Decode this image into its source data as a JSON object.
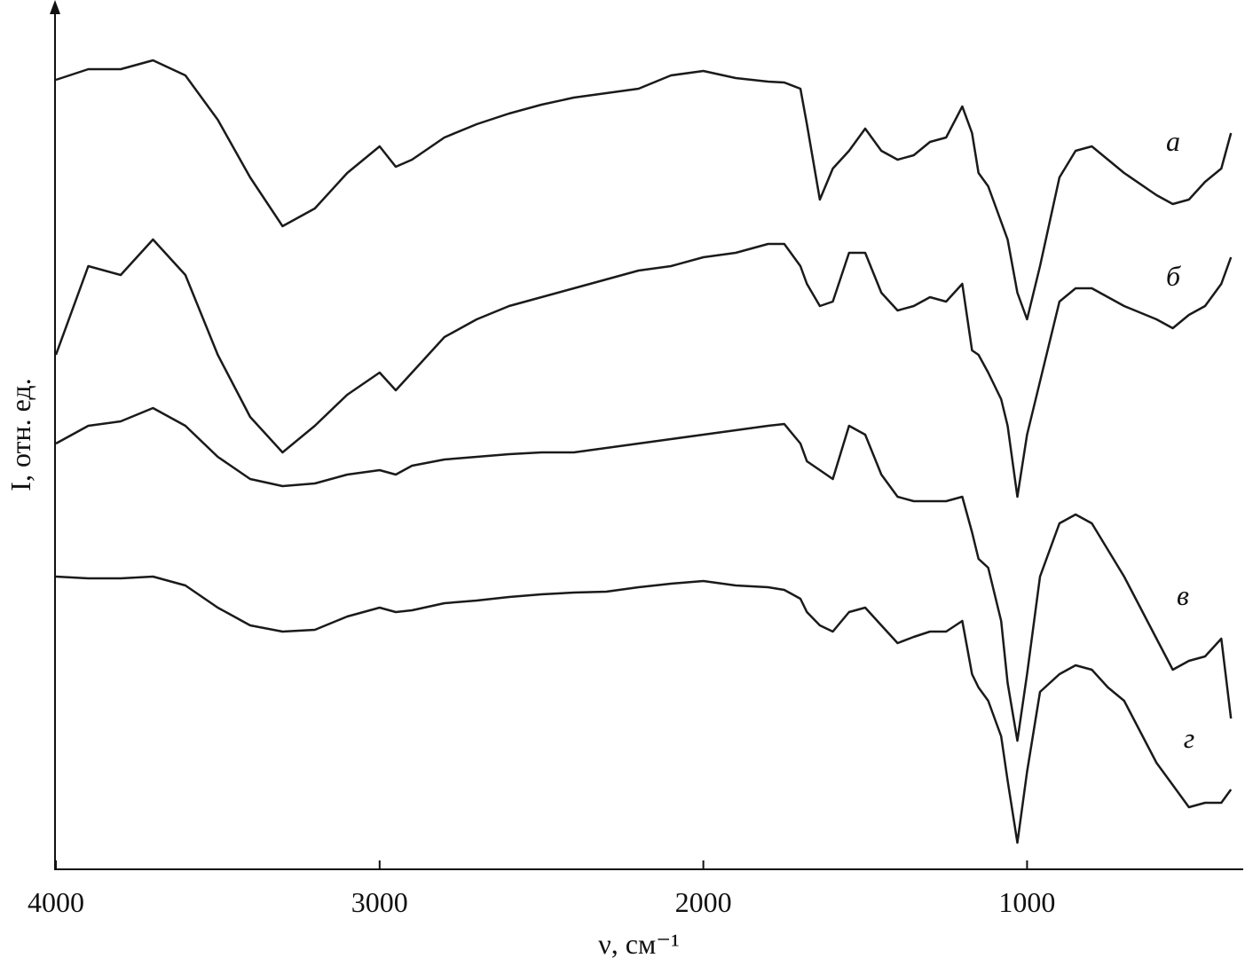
{
  "chart_data": {
    "type": "line",
    "xlabel": "ν, см⁻¹",
    "ylabel": "I, отн. ед.",
    "xlim": [
      4000,
      335
    ],
    "ylim": [
      0,
      975
    ],
    "xticks": [
      4000,
      3000,
      2000,
      1000
    ],
    "x": [
      4000,
      3900,
      3800,
      3700,
      3600,
      3500,
      3400,
      3300,
      3200,
      3100,
      3000,
      2950,
      2900,
      2800,
      2700,
      2600,
      2500,
      2400,
      2300,
      2200,
      2100,
      2000,
      1900,
      1800,
      1750,
      1700,
      1680,
      1640,
      1600,
      1550,
      1500,
      1450,
      1400,
      1350,
      1300,
      1250,
      1200,
      1170,
      1150,
      1120,
      1080,
      1060,
      1030,
      1000,
      960,
      900,
      850,
      800,
      750,
      700,
      600,
      550,
      500,
      450,
      400,
      370
    ],
    "series": [
      {
        "name": "а",
        "color": "#1a1a1a",
        "values": [
          890,
          902,
          902,
          912,
          895,
          845,
          780,
          725,
          745,
          785,
          815,
          792,
          800,
          825,
          840,
          852,
          862,
          870,
          875,
          880,
          895,
          900,
          892,
          888,
          887,
          880,
          840,
          755,
          790,
          810,
          835,
          810,
          800,
          805,
          820,
          825,
          860,
          830,
          785,
          770,
          730,
          710,
          650,
          620,
          680,
          780,
          810,
          815,
          800,
          785,
          760,
          750,
          755,
          775,
          790,
          830
        ]
      },
      {
        "name": "б",
        "color": "#1a1a1a",
        "values": [
          580,
          680,
          670,
          710,
          670,
          580,
          510,
          470,
          500,
          535,
          560,
          540,
          560,
          600,
          620,
          635,
          645,
          655,
          665,
          675,
          680,
          690,
          695,
          705,
          705,
          680,
          660,
          635,
          640,
          695,
          695,
          650,
          630,
          635,
          645,
          640,
          660,
          585,
          580,
          560,
          530,
          500,
          420,
          490,
          550,
          640,
          655,
          655,
          645,
          635,
          620,
          610,
          625,
          635,
          660,
          690
        ]
      },
      {
        "name": "в",
        "color": "#1a1a1a",
        "values": [
          480,
          500,
          505,
          520,
          500,
          465,
          440,
          432,
          435,
          445,
          450,
          445,
          455,
          462,
          465,
          468,
          470,
          470,
          475,
          480,
          485,
          490,
          495,
          500,
          502,
          480,
          460,
          450,
          440,
          500,
          490,
          445,
          420,
          415,
          415,
          415,
          420,
          380,
          350,
          340,
          280,
          210,
          145,
          220,
          330,
          390,
          400,
          390,
          360,
          330,
          260,
          225,
          235,
          240,
          260,
          170
        ]
      },
      {
        "name": "г",
        "color": "#1a1a1a",
        "values": [
          330,
          328,
          328,
          330,
          320,
          295,
          275,
          268,
          270,
          285,
          295,
          290,
          292,
          300,
          303,
          307,
          310,
          312,
          313,
          318,
          322,
          325,
          320,
          318,
          315,
          305,
          290,
          275,
          268,
          290,
          295,
          275,
          255,
          262,
          268,
          268,
          280,
          220,
          205,
          190,
          150,
          100,
          30,
          110,
          200,
          220,
          230,
          225,
          205,
          190,
          120,
          95,
          70,
          75,
          75,
          90
        ]
      }
    ]
  }
}
